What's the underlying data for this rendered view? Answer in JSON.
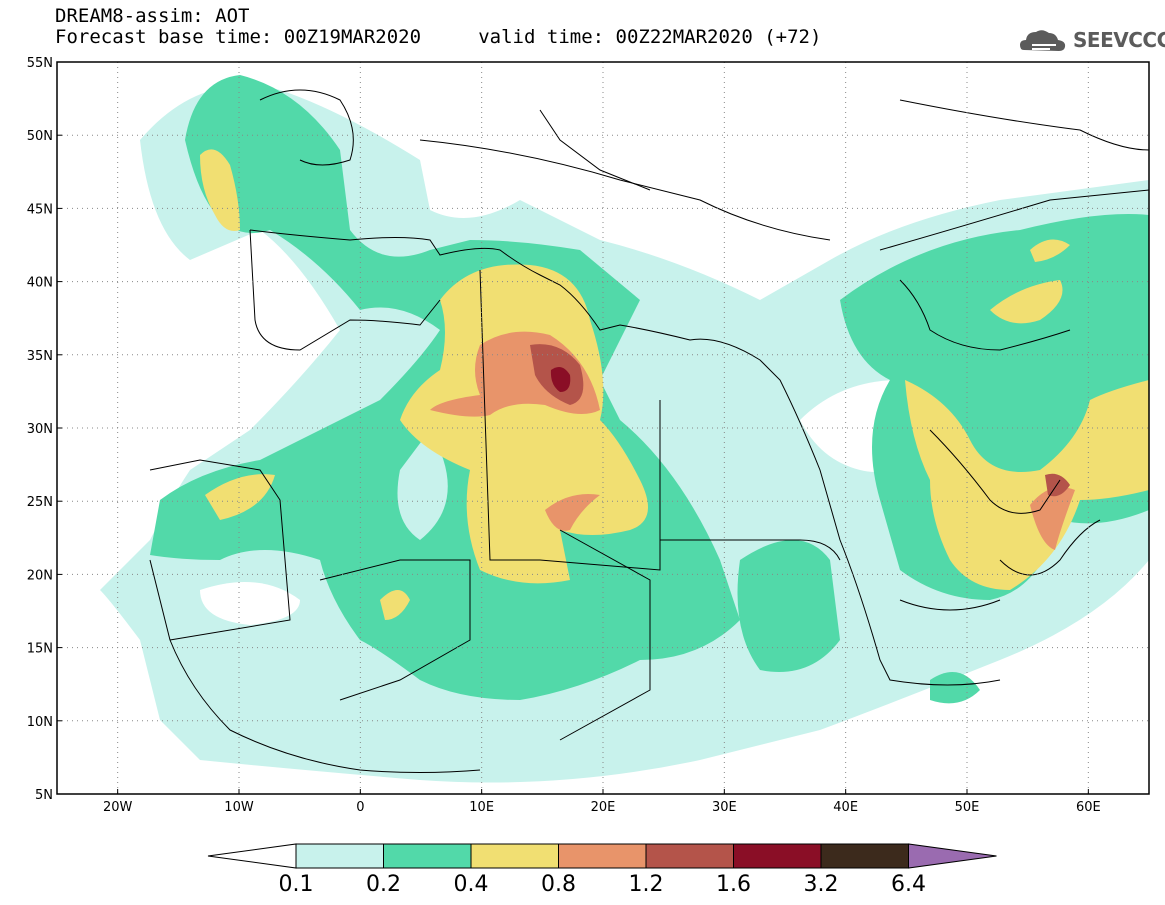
{
  "header": {
    "line1": "DREAM8-assim: AOT",
    "line2": "Forecast base time: 00Z19MAR2020     valid time: 00Z22MAR2020 (+72)",
    "logo_text": "SEEVCCC"
  },
  "map": {
    "lon_range": [
      -25,
      65
    ],
    "lat_range": [
      5,
      55
    ],
    "lat_ticks": [
      "55N",
      "50N",
      "45N",
      "40N",
      "35N",
      "30N",
      "25N",
      "20N",
      "15N",
      "10N",
      "5N"
    ],
    "lon_ticks": [
      "20W",
      "10W",
      "0",
      "10E",
      "20E",
      "30E",
      "40E",
      "50E",
      "60E"
    ],
    "grid": "dotted",
    "variable": "AOT"
  },
  "colorbar": {
    "labels": [
      "0.1",
      "0.2",
      "0.4",
      "0.8",
      "1.2",
      "1.6",
      "3.2",
      "6.4"
    ],
    "colors": [
      "#c8f2ec",
      "#52d9a9",
      "#f1df72",
      "#e8946a",
      "#b4544a",
      "#8a0e26",
      "#3c2a1c",
      "#9a6bb0"
    ]
  }
}
